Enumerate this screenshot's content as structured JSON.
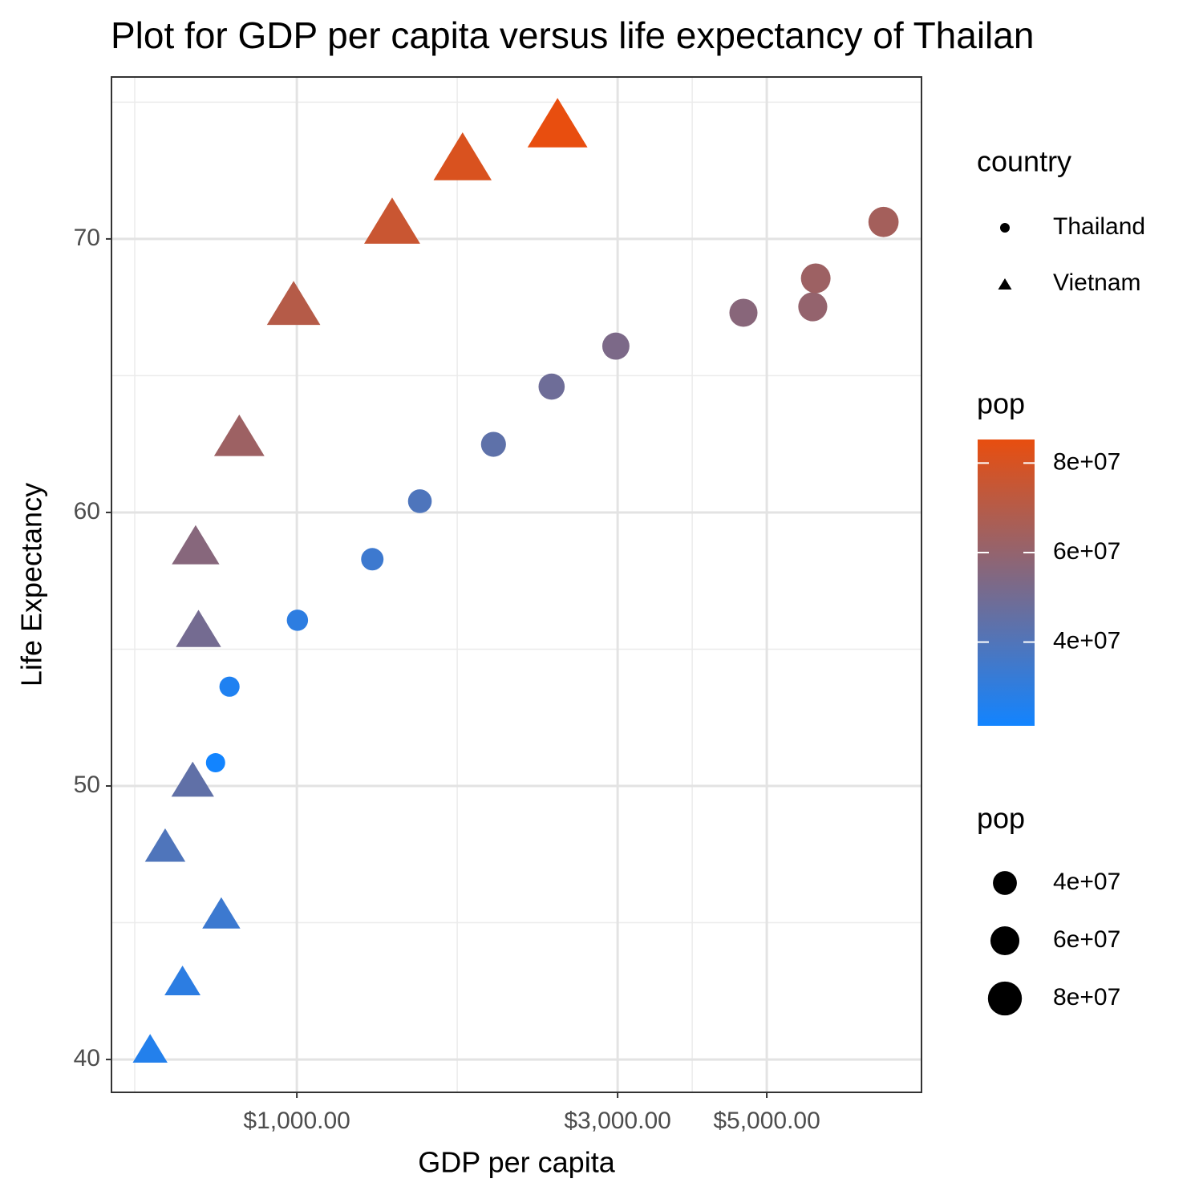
{
  "chart_data": {
    "type": "scatter",
    "title": "Plot for GDP per capita versus life expectancy of Thailan",
    "x_label": "GDP per capita",
    "y_label": "Life Expectancy",
    "xlog": true,
    "xlim": [
      530,
      8494
    ],
    "ylim": [
      38.8,
      75.92
    ],
    "xticks": [
      {
        "value": 1000,
        "label": "$1,000.00"
      },
      {
        "value": 3000,
        "label": "$3,000.00"
      },
      {
        "value": 5000,
        "label": "$5,000.00"
      }
    ],
    "xminorticks": [
      574,
      1732,
      3873
    ],
    "yticks": [
      40,
      50,
      60,
      70
    ],
    "yminorticks": [
      45,
      55,
      65,
      75
    ],
    "grid": true,
    "color_scale": {
      "low": "#1284ff",
      "high": "#e84e0f"
    },
    "shape_legend_title": "country",
    "color_legend_title": "pop",
    "size_legend_title": "pop",
    "legend_ticks": [
      {
        "value": 40000000,
        "label": "4e+07"
      },
      {
        "value": 60000000,
        "label": "6e+07"
      },
      {
        "value": 80000000,
        "label": "8e+07"
      }
    ],
    "series": [
      {
        "name": "Thailand",
        "shape": "circle",
        "x": [
          757,
          794,
          1002,
          1295,
          1524,
          1961,
          2393,
          2982,
          4616,
          5853,
          5913,
          7458
        ],
        "y": [
          50.85,
          53.63,
          56.06,
          58.29,
          60.41,
          62.49,
          64.6,
          66.08,
          67.3,
          67.52,
          68.56,
          70.62
        ],
        "pop": [
          21289402,
          25041917,
          29263397,
          34024249,
          39276153,
          44148285,
          48827160,
          52910342,
          56667095,
          60216677,
          62806748,
          65068149
        ]
      },
      {
        "name": "Vietnam",
        "shape": "triangle",
        "x": [
          605,
          676,
          772,
          637,
          700,
          714,
          707,
          821,
          989,
          1386,
          1764,
          2442
        ],
        "y": [
          40.41,
          42.89,
          45.36,
          47.84,
          50.25,
          55.76,
          58.82,
          62.82,
          67.66,
          70.67,
          73.02,
          74.25
        ],
        "pop": [
          26246839,
          28998543,
          33796140,
          39463910,
          44655014,
          50533506,
          56142181,
          62826491,
          69940728,
          76048996,
          80908147,
          85262356
        ]
      }
    ]
  }
}
